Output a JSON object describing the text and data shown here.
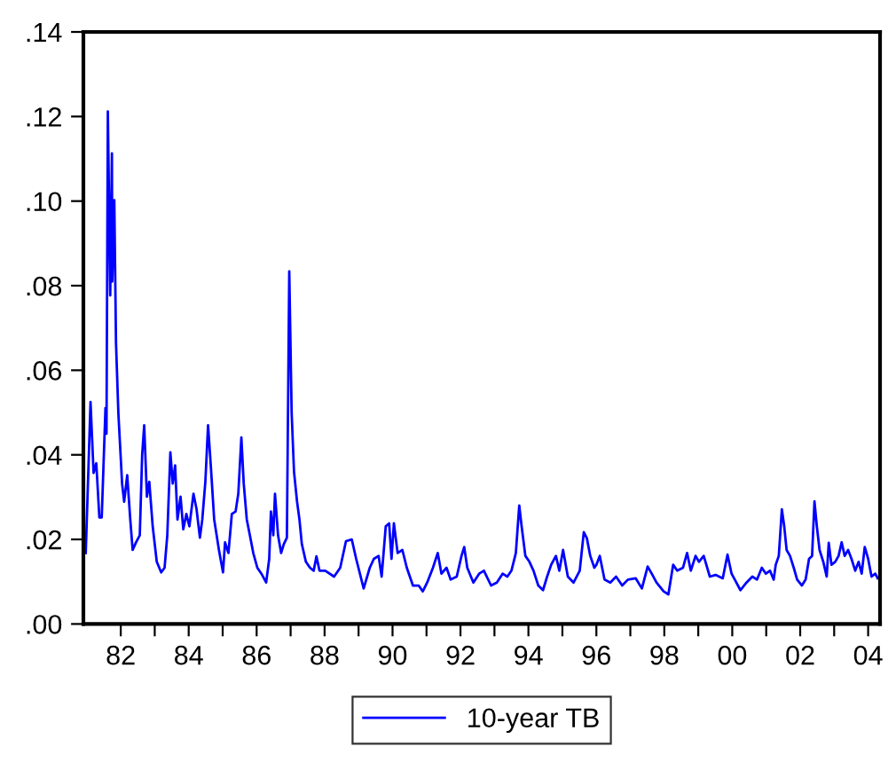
{
  "chart_data": {
    "type": "line",
    "x": [
      1980.97,
      1981.11,
      1981.2,
      1981.28,
      1981.37,
      1981.44,
      1981.49,
      1981.55,
      1981.58,
      1981.62,
      1981.69,
      1981.74,
      1981.75,
      1981.81,
      1981.86,
      1981.93,
      1982.04,
      1982.1,
      1982.19,
      1982.28,
      1982.35,
      1982.45,
      1982.56,
      1982.63,
      1982.69,
      1982.77,
      1982.84,
      1982.94,
      1983.06,
      1983.19,
      1983.29,
      1983.37,
      1983.46,
      1983.53,
      1983.6,
      1983.67,
      1983.76,
      1983.84,
      1983.93,
      1984.02,
      1984.14,
      1984.23,
      1984.33,
      1984.4,
      1984.49,
      1984.57,
      1984.65,
      1984.75,
      1984.89,
      1985.01,
      1985.07,
      1985.17,
      1985.27,
      1985.38,
      1985.46,
      1985.55,
      1985.62,
      1985.71,
      1985.8,
      1985.9,
      1986.02,
      1986.14,
      1986.28,
      1986.37,
      1986.42,
      1986.49,
      1986.54,
      1986.63,
      1986.72,
      1986.8,
      1986.89,
      1986.96,
      1987.03,
      1987.1,
      1987.19,
      1987.26,
      1987.33,
      1987.45,
      1987.57,
      1987.68,
      1987.76,
      1987.85,
      1988.02,
      1988.28,
      1988.46,
      1988.63,
      1988.8,
      1988.93,
      1989.15,
      1989.33,
      1989.45,
      1989.59,
      1989.68,
      1989.8,
      1989.9,
      1989.97,
      1990.04,
      1990.15,
      1990.29,
      1990.42,
      1990.6,
      1990.77,
      1990.89,
      1991.02,
      1991.19,
      1991.33,
      1991.44,
      1991.59,
      1991.71,
      1991.89,
      1992.03,
      1992.11,
      1992.2,
      1992.38,
      1992.55,
      1992.69,
      1992.9,
      1993.07,
      1993.24,
      1993.38,
      1993.5,
      1993.63,
      1993.73,
      1993.8,
      1993.91,
      1994.03,
      1994.15,
      1994.29,
      1994.43,
      1994.55,
      1994.67,
      1994.81,
      1994.91,
      1995.02,
      1995.16,
      1995.33,
      1995.51,
      1995.63,
      1995.72,
      1995.82,
      1995.94,
      1996.0,
      1996.1,
      1996.24,
      1996.41,
      1996.58,
      1996.76,
      1996.93,
      1997.16,
      1997.34,
      1997.51,
      1997.63,
      1997.77,
      1997.98,
      1998.12,
      1998.26,
      1998.38,
      1998.55,
      1998.67,
      1998.78,
      1998.92,
      1999.02,
      1999.16,
      1999.34,
      1999.51,
      1999.72,
      1999.86,
      1999.98,
      2000.12,
      2000.24,
      2000.42,
      2000.59,
      2000.73,
      2000.87,
      2000.99,
      2001.11,
      2001.22,
      2001.28,
      2001.37,
      2001.46,
      2001.53,
      2001.6,
      2001.7,
      2001.81,
      2001.91,
      2002.05,
      2002.16,
      2002.26,
      2002.35,
      2002.42,
      2002.49,
      2002.57,
      2002.68,
      2002.78,
      2002.84,
      2002.92,
      2003.03,
      2003.13,
      2003.22,
      2003.31,
      2003.41,
      2003.51,
      2003.62,
      2003.72,
      2003.81,
      2003.9,
      2004.0,
      2004.1,
      2004.21,
      2004.28
    ],
    "series": [
      {
        "name": "10-year TB",
        "color": "#0000ff",
        "values": [
          0.0168,
          0.0525,
          0.0357,
          0.038,
          0.0252,
          0.0252,
          0.037,
          0.0511,
          0.045,
          0.1212,
          0.0777,
          0.1113,
          0.081,
          0.1002,
          0.0665,
          0.0498,
          0.0331,
          0.0289,
          0.0352,
          0.0247,
          0.0175,
          0.0193,
          0.021,
          0.04,
          0.047,
          0.0301,
          0.0336,
          0.0231,
          0.0147,
          0.0122,
          0.0133,
          0.021,
          0.0406,
          0.0332,
          0.0375,
          0.0247,
          0.0301,
          0.0224,
          0.026,
          0.0231,
          0.0308,
          0.0272,
          0.0204,
          0.0247,
          0.0336,
          0.047,
          0.0375,
          0.0247,
          0.0175,
          0.0122,
          0.0193,
          0.0168,
          0.026,
          0.0266,
          0.0308,
          0.0441,
          0.0332,
          0.0247,
          0.021,
          0.0168,
          0.0133,
          0.0119,
          0.0098,
          0.0154,
          0.0266,
          0.021,
          0.0308,
          0.021,
          0.0168,
          0.0189,
          0.0204,
          0.0834,
          0.05,
          0.036,
          0.0289,
          0.0247,
          0.0189,
          0.0147,
          0.0133,
          0.0126,
          0.016,
          0.0126,
          0.0126,
          0.0112,
          0.0133,
          0.0196,
          0.02,
          0.0154,
          0.0084,
          0.0133,
          0.0154,
          0.0161,
          0.0112,
          0.0231,
          0.0238,
          0.0154,
          0.0238,
          0.0168,
          0.0175,
          0.0133,
          0.0091,
          0.0091,
          0.0077,
          0.0098,
          0.0133,
          0.0168,
          0.0119,
          0.0133,
          0.0105,
          0.0112,
          0.0161,
          0.0182,
          0.0133,
          0.0098,
          0.0119,
          0.0126,
          0.0091,
          0.0098,
          0.0119,
          0.0112,
          0.0126,
          0.0168,
          0.028,
          0.0231,
          0.0161,
          0.0147,
          0.0126,
          0.0091,
          0.008,
          0.0112,
          0.014,
          0.0161,
          0.0126,
          0.0175,
          0.0112,
          0.0098,
          0.0126,
          0.0217,
          0.0203,
          0.0161,
          0.0133,
          0.014,
          0.0161,
          0.0105,
          0.0098,
          0.0112,
          0.0091,
          0.0105,
          0.0108,
          0.0084,
          0.0136,
          0.0119,
          0.0098,
          0.0077,
          0.007,
          0.014,
          0.0126,
          0.0133,
          0.0168,
          0.0126,
          0.0161,
          0.0147,
          0.0161,
          0.0112,
          0.0116,
          0.0108,
          0.0164,
          0.0119,
          0.0098,
          0.008,
          0.0098,
          0.0112,
          0.0105,
          0.0133,
          0.0119,
          0.0126,
          0.0105,
          0.014,
          0.0161,
          0.0271,
          0.0231,
          0.0175,
          0.0161,
          0.0133,
          0.0105,
          0.0091,
          0.0105,
          0.0154,
          0.0161,
          0.029,
          0.0231,
          0.0175,
          0.0147,
          0.0112,
          0.0192,
          0.014,
          0.0147,
          0.0161,
          0.0193,
          0.0161,
          0.0175,
          0.0154,
          0.0126,
          0.0147,
          0.0119,
          0.0182,
          0.0154,
          0.0112,
          0.0119,
          0.0108
        ]
      }
    ],
    "xlim": [
      1980.9,
      2004.35
    ],
    "xticks": [
      {
        "value": 1982,
        "label": "82"
      },
      {
        "value": 1983,
        "label": null
      },
      {
        "value": 1984,
        "label": "84"
      },
      {
        "value": 1985,
        "label": null
      },
      {
        "value": 1986,
        "label": "86"
      },
      {
        "value": 1987,
        "label": null
      },
      {
        "value": 1988,
        "label": "88"
      },
      {
        "value": 1989,
        "label": null
      },
      {
        "value": 1990,
        "label": "90"
      },
      {
        "value": 1991,
        "label": null
      },
      {
        "value": 1992,
        "label": "92"
      },
      {
        "value": 1993,
        "label": null
      },
      {
        "value": 1994,
        "label": "94"
      },
      {
        "value": 1995,
        "label": null
      },
      {
        "value": 1996,
        "label": "96"
      },
      {
        "value": 1997,
        "label": null
      },
      {
        "value": 1998,
        "label": "98"
      },
      {
        "value": 1999,
        "label": null
      },
      {
        "value": 2000,
        "label": "00"
      },
      {
        "value": 2001,
        "label": null
      },
      {
        "value": 2002,
        "label": "02"
      },
      {
        "value": 2003,
        "label": null
      },
      {
        "value": 2004,
        "label": "04"
      }
    ],
    "ylim": [
      0,
      0.14
    ],
    "yticks": [
      {
        "value": 0,
        "label": ".00"
      },
      {
        "value": 0.02,
        "label": ".02"
      },
      {
        "value": 0.04,
        "label": ".04"
      },
      {
        "value": 0.06,
        "label": ".06"
      },
      {
        "value": 0.08,
        "label": ".08"
      },
      {
        "value": 0.1,
        "label": ".10"
      },
      {
        "value": 0.12,
        "label": ".12"
      },
      {
        "value": 0.14,
        "label": ".14"
      }
    ],
    "grid": false,
    "legend": "bottom",
    "marker": "none",
    "line_style": "solid"
  }
}
